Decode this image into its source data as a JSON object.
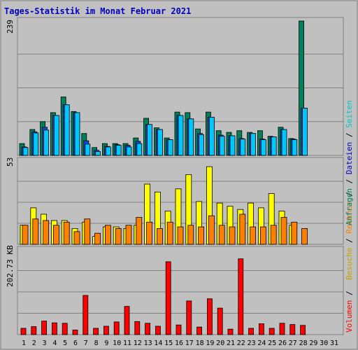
{
  "title": "Tages-Statistik im Monat Februar 2021",
  "colors": {
    "background": "#c0c0c0",
    "plot": "#c0c0c0",
    "border": "#808080",
    "title": "#0000c0",
    "anfragen": "#00805a",
    "dateien": "#00c8ff",
    "seiten": "#00d8d8",
    "besuche": "#ffff00",
    "rechner": "#ff8000",
    "volumen": "#ff0000",
    "weekend": "#00805a",
    "weekday": "#000000"
  },
  "legend": {
    "top_panel": [
      {
        "label": "Anfragen",
        "color": "#00805a"
      },
      {
        "label": "Dateien",
        "color": "#0000c0"
      },
      {
        "label": "Seiten",
        "color": "#00c8c8"
      }
    ],
    "middle_panel": [
      {
        "label": "Besuche",
        "color": "#c8a000"
      },
      {
        "label": "Rechner",
        "color": "#ff8000"
      }
    ],
    "bottom_panel": [
      {
        "label": "Volumen",
        "color": "#ff0000"
      }
    ],
    "separator": " / "
  },
  "chart_data": [
    {
      "type": "bar",
      "panel": "top",
      "axis_max_label": "239",
      "ylim": [
        0,
        239
      ],
      "categories": [
        "1",
        "2",
        "3",
        "4",
        "5",
        "6",
        "7",
        "8",
        "9",
        "10",
        "11",
        "12",
        "13",
        "14",
        "15",
        "16",
        "17",
        "18",
        "19",
        "20",
        "21",
        "22",
        "23",
        "24",
        "25",
        "26",
        "27",
        "28",
        "29",
        "30",
        "31"
      ],
      "weekend_days": [
        "6",
        "7",
        "13",
        "14",
        "20",
        "21",
        "27",
        "28"
      ],
      "series": [
        {
          "name": "Anfragen",
          "values": [
            21,
            46,
            60,
            76,
            104,
            78,
            39,
            14,
            21,
            21,
            21,
            31,
            66,
            49,
            31,
            77,
            76,
            47,
            77,
            44,
            41,
            44,
            41,
            44,
            34,
            50,
            30,
            239,
            0,
            0,
            0
          ]
        },
        {
          "name": "Dateien",
          "values": [
            15,
            42,
            50,
            71,
            90,
            76,
            26,
            9,
            16,
            19,
            18,
            25,
            55,
            46,
            28,
            71,
            65,
            39,
            68,
            36,
            35,
            30,
            39,
            29,
            33,
            46,
            29,
            84,
            0,
            0,
            0
          ]
        },
        {
          "name": "Seiten",
          "values": [
            14,
            40,
            45,
            71,
            90,
            76,
            20,
            7,
            15,
            18,
            15,
            21,
            55,
            46,
            28,
            71,
            65,
            37,
            68,
            34,
            35,
            29,
            39,
            28,
            33,
            46,
            28,
            84,
            0,
            0,
            0
          ]
        }
      ]
    },
    {
      "type": "bar",
      "panel": "middle",
      "axis_max_label": "53",
      "ylim": [
        0,
        53
      ],
      "categories": [
        "1",
        "2",
        "3",
        "4",
        "5",
        "6",
        "7",
        "8",
        "9",
        "10",
        "11",
        "12",
        "13",
        "14",
        "15",
        "16",
        "17",
        "18",
        "19",
        "20",
        "21",
        "22",
        "23",
        "24",
        "25",
        "26",
        "27",
        "28",
        "29",
        "30",
        "31"
      ],
      "series": [
        {
          "name": "Besuche",
          "values": [
            12,
            23,
            19,
            15,
            15,
            10,
            14,
            5,
            11,
            11,
            10,
            12,
            38,
            33,
            21,
            35,
            44,
            27,
            49,
            26,
            24,
            22,
            26,
            23,
            32,
            21,
            12,
            0,
            0,
            0,
            0
          ]
        },
        {
          "name": "Rechner",
          "values": [
            12,
            16,
            15,
            12,
            14,
            8,
            16,
            7,
            12,
            10,
            12,
            17,
            14,
            10,
            14,
            11,
            12,
            11,
            18,
            12,
            11,
            19,
            11,
            11,
            12,
            17,
            14,
            10,
            0,
            0,
            0
          ]
        }
      ]
    },
    {
      "type": "bar",
      "panel": "bottom",
      "axis_max_label": "202.73 KB",
      "ylim": [
        0,
        202.73
      ],
      "categories": [
        "1",
        "2",
        "3",
        "4",
        "5",
        "6",
        "7",
        "8",
        "9",
        "10",
        "11",
        "12",
        "13",
        "14",
        "15",
        "16",
        "17",
        "18",
        "19",
        "20",
        "21",
        "22",
        "23",
        "24",
        "25",
        "26",
        "27",
        "28",
        "29",
        "30",
        "31"
      ],
      "series": [
        {
          "name": "Volumen",
          "values": [
            15,
            19,
            32,
            28,
            27,
            11,
            93,
            15,
            20,
            30,
            67,
            31,
            27,
            20,
            173,
            23,
            80,
            18,
            85,
            63,
            13,
            180,
            15,
            26,
            15,
            27,
            24,
            22,
            0,
            0,
            0
          ]
        }
      ]
    }
  ]
}
